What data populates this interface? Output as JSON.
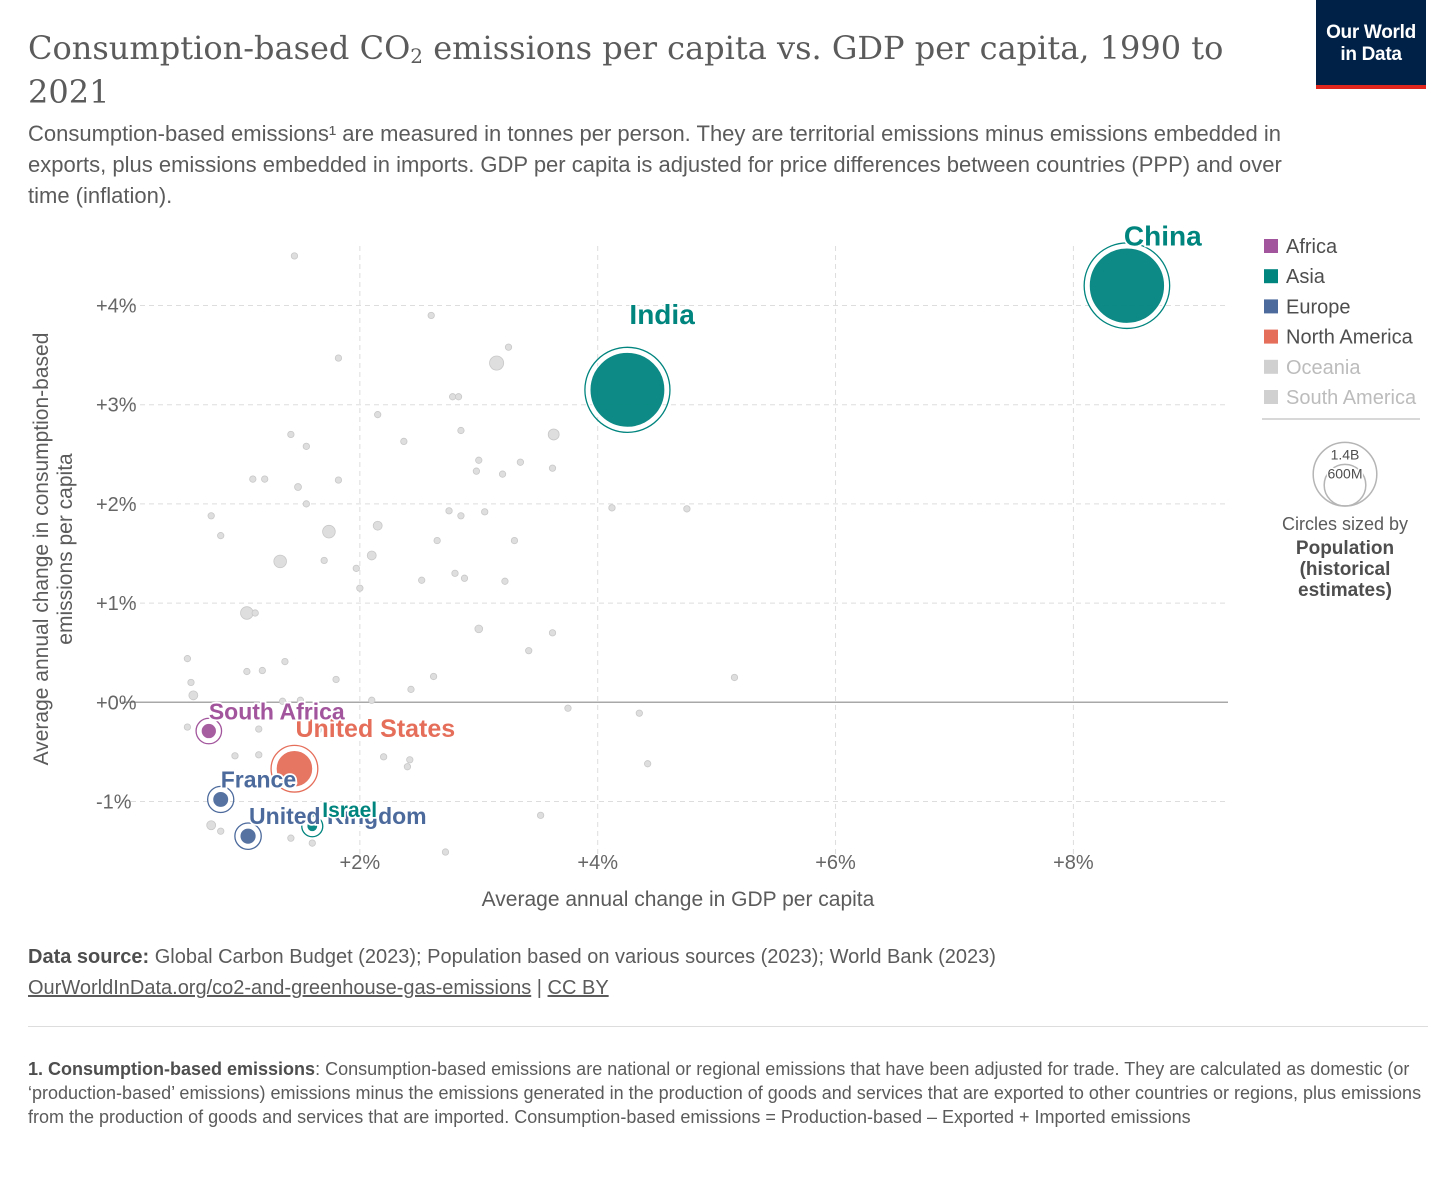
{
  "header": {
    "title_pre": "Consumption-based CO",
    "title_sub": "2",
    "title_post": " emissions per capita vs. GDP per capita, 1990 to 2021",
    "subtitle": "Consumption-based emissions¹ are measured in tonnes per person. They are territorial emissions minus emissions embedded in exports, plus emissions embedded in imports. GDP per capita is adjusted for price differences between countries (PPP) and over time (inflation).",
    "logo_line1": "Our World",
    "logo_line2": "in Data"
  },
  "colors": {
    "Africa": "#a2559c",
    "Asia": "#00847e",
    "Europe": "#4c6a9c",
    "North America": "#e56e5a",
    "Oceania": "#d0d0d0",
    "South America": "#d0d0d0",
    "background_point": "#d6d6d6"
  },
  "chart_data": {
    "type": "scatter",
    "xlabel": "Average annual change in GDP per capita",
    "ylabel": "Average annual change in consumption-based emissions per capita",
    "xlim": [
      0.0,
      9.3
    ],
    "ylim": [
      -1.55,
      4.6
    ],
    "x_ticks": [
      {
        "v": 2,
        "label": "+2%"
      },
      {
        "v": 4,
        "label": "+4%"
      },
      {
        "v": 6,
        "label": "+6%"
      },
      {
        "v": 8,
        "label": "+8%"
      }
    ],
    "y_ticks": [
      {
        "v": 4,
        "label": "+4%"
      },
      {
        "v": 3,
        "label": "+3%"
      },
      {
        "v": 2,
        "label": "+2%"
      },
      {
        "v": 1,
        "label": "+1%"
      },
      {
        "v": 0,
        "label": "+0%"
      },
      {
        "v": -1,
        "label": "-1%"
      }
    ],
    "highlighted": [
      {
        "name": "China",
        "x": 8.45,
        "y": 4.2,
        "population_m": 1425,
        "region": "Asia"
      },
      {
        "name": "India",
        "x": 4.25,
        "y": 3.15,
        "population_m": 1408,
        "region": "Asia"
      },
      {
        "name": "United States",
        "x": 1.45,
        "y": -0.67,
        "population_m": 337,
        "region": "North America"
      },
      {
        "name": "South Africa",
        "x": 0.73,
        "y": -0.29,
        "population_m": 60,
        "region": "Africa"
      },
      {
        "name": "France",
        "x": 0.83,
        "y": -0.98,
        "population_m": 65,
        "region": "Europe"
      },
      {
        "name": "United Kingdom",
        "x": 1.06,
        "y": -1.35,
        "population_m": 67,
        "region": "Europe"
      },
      {
        "name": "Israel",
        "x": 1.6,
        "y": -1.25,
        "population_m": 9,
        "region": "Asia"
      }
    ],
    "other_countries": [
      [
        1.45,
        4.5,
        3
      ],
      [
        1.82,
        3.47,
        3
      ],
      [
        2.6,
        3.9,
        3
      ],
      [
        3.15,
        3.42,
        50
      ],
      [
        3.25,
        3.58,
        3
      ],
      [
        2.15,
        2.9,
        8
      ],
      [
        2.78,
        3.08,
        3
      ],
      [
        2.83,
        3.08,
        6
      ],
      [
        3.63,
        2.7,
        30
      ],
      [
        1.42,
        2.7,
        3
      ],
      [
        1.55,
        2.58,
        3
      ],
      [
        2.37,
        2.63,
        3
      ],
      [
        2.85,
        2.74,
        3
      ],
      [
        1.1,
        2.25,
        3
      ],
      [
        1.2,
        2.25,
        3
      ],
      [
        1.48,
        2.17,
        12
      ],
      [
        1.82,
        2.24,
        3
      ],
      [
        3.0,
        2.44,
        6
      ],
      [
        3.35,
        2.42,
        3
      ],
      [
        3.62,
        2.36,
        3
      ],
      [
        0.75,
        1.88,
        8
      ],
      [
        0.83,
        1.68,
        3
      ],
      [
        1.55,
        2.0,
        3
      ],
      [
        1.74,
        1.72,
        40
      ],
      [
        2.15,
        1.78,
        20
      ],
      [
        2.75,
        1.93,
        8
      ],
      [
        2.85,
        1.88,
        3
      ],
      [
        3.05,
        1.92,
        3
      ],
      [
        2.98,
        2.33,
        3
      ],
      [
        3.2,
        2.3,
        3
      ],
      [
        4.12,
        1.96,
        6
      ],
      [
        4.75,
        1.95,
        3
      ],
      [
        1.33,
        1.42,
        40
      ],
      [
        1.7,
        1.43,
        3
      ],
      [
        2.1,
        1.48,
        20
      ],
      [
        2.65,
        1.63,
        6
      ],
      [
        3.3,
        1.63,
        3
      ],
      [
        1.97,
        1.35,
        3
      ],
      [
        2.52,
        1.23,
        3
      ],
      [
        2.8,
        1.3,
        3
      ],
      [
        2.88,
        1.25,
        3
      ],
      [
        3.22,
        1.22,
        6
      ],
      [
        2.0,
        1.15,
        3
      ],
      [
        1.05,
        0.9,
        40
      ],
      [
        1.12,
        0.9,
        3
      ],
      [
        3.0,
        0.74,
        15
      ],
      [
        3.62,
        0.7,
        3
      ],
      [
        0.55,
        0.44,
        3
      ],
      [
        1.37,
        0.41,
        6
      ],
      [
        1.05,
        0.31,
        3
      ],
      [
        1.18,
        0.32,
        3
      ],
      [
        1.8,
        0.23,
        8
      ],
      [
        2.62,
        0.26,
        3
      ],
      [
        3.42,
        0.52,
        3
      ],
      [
        0.58,
        0.2,
        3
      ],
      [
        5.15,
        0.25,
        3
      ],
      [
        2.43,
        0.13,
        3
      ],
      [
        0.6,
        0.07,
        20
      ],
      [
        1.35,
        0.01,
        3
      ],
      [
        1.5,
        0.02,
        3
      ],
      [
        2.1,
        0.02,
        3
      ],
      [
        3.75,
        -0.06,
        6
      ],
      [
        4.35,
        -0.11,
        3
      ],
      [
        1.15,
        -0.27,
        3
      ],
      [
        1.65,
        -0.28,
        3
      ],
      [
        0.95,
        -0.54,
        8
      ],
      [
        1.15,
        -0.53,
        3
      ],
      [
        2.2,
        -0.55,
        3
      ],
      [
        2.42,
        -0.58,
        3
      ],
      [
        2.4,
        -0.65,
        3
      ],
      [
        4.42,
        -0.62,
        3
      ],
      [
        0.75,
        -1.24,
        20
      ],
      [
        0.83,
        -1.3,
        3
      ],
      [
        1.42,
        -1.37,
        3
      ],
      [
        1.6,
        -1.42,
        3
      ],
      [
        2.72,
        -1.51,
        3
      ],
      [
        3.52,
        -1.14,
        3
      ],
      [
        0.55,
        -0.25,
        6
      ]
    ]
  },
  "legend": {
    "items": [
      {
        "label": "Africa",
        "color": "#a2559c",
        "muted": false
      },
      {
        "label": "Asia",
        "color": "#00847e",
        "muted": false
      },
      {
        "label": "Europe",
        "color": "#4c6a9c",
        "muted": false
      },
      {
        "label": "North America",
        "color": "#e56e5a",
        "muted": false
      },
      {
        "label": "Oceania",
        "color": "#d0d0d0",
        "muted": true
      },
      {
        "label": "South America",
        "color": "#d0d0d0",
        "muted": true
      }
    ],
    "size_big_label": "1.4B",
    "size_small_label": "600M",
    "size_big_value_m": 1400,
    "size_small_value_m": 600,
    "sized_by_label": "Circles sized by",
    "sized_by_line1": "Population",
    "sized_by_line2": "(historical",
    "sized_by_line3": "estimates)"
  },
  "footer": {
    "source_label": "Data source:",
    "source_text": " Global Carbon Budget (2023); Population based on various sources (2023); World Bank (2023)",
    "url_text": "OurWorldInData.org/co2-and-greenhouse-gas-emissions",
    "separator": " | ",
    "license_text": "CC BY",
    "footnote_label": "1. Consumption-based emissions",
    "footnote_text": ": Consumption-based emissions are national or regional emissions that have been adjusted for trade. They are calculated as domestic (or ‘production-based’ emissions) emissions minus the emissions generated in the production of goods and services that are exported to other countries or regions, plus emissions from the production of goods and services that are imported. Consumption-based emissions = Production-based – Exported + Imported emissions"
  }
}
